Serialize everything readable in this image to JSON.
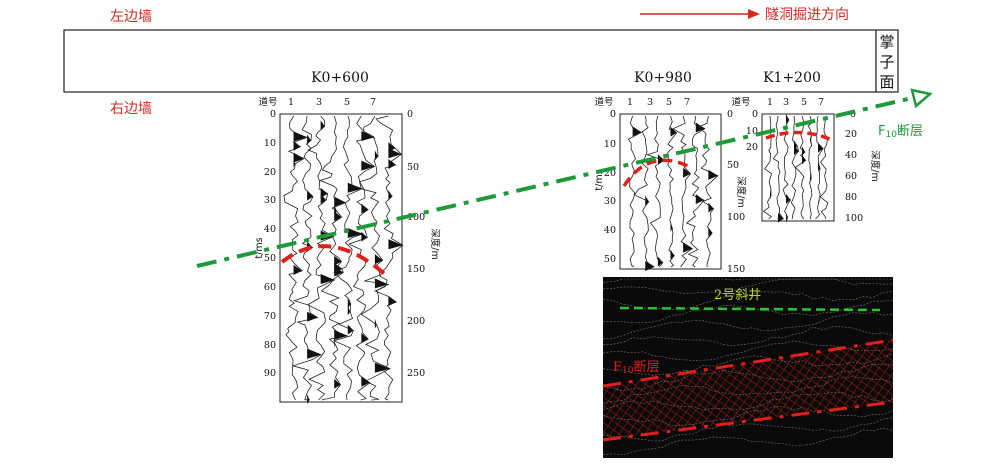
{
  "labels": {
    "left_wall": "左边墙",
    "right_wall": "右边墙",
    "direction": "隧洞掘进方向",
    "face_chars": [
      "掌",
      "子",
      "面"
    ],
    "fault_prefix": "F",
    "fault_sub": "10",
    "fault_suffix": "断层",
    "inclined_shaft": "2号斜井",
    "channel_header": "道号",
    "time_axis": "t/ms",
    "depth_axis": "深度/m"
  },
  "colors": {
    "red_text": "#d42a20",
    "fault_line": "#1f9a3a",
    "anomaly": "#e0201a",
    "shaft": "#2ec22e",
    "inset_bg": "#0a0a0a"
  },
  "panels": [
    {
      "station": "K0+600",
      "channels": [
        "1",
        "3",
        "5",
        "7"
      ],
      "time_ticks": [
        "0",
        "10",
        "20",
        "30",
        "40",
        "50",
        "60",
        "70",
        "80",
        "90"
      ],
      "depth_ticks": [
        "0",
        "50",
        "100",
        "150",
        "200",
        "250"
      ]
    },
    {
      "station": "K0+980",
      "channels": [
        "1",
        "3",
        "5",
        "7"
      ],
      "time_ticks": [
        "0",
        "10",
        "20",
        "30",
        "40",
        "50"
      ],
      "depth_ticks": [
        "0",
        "50",
        "100",
        "150"
      ]
    },
    {
      "station": "K1+200",
      "channels": [
        "1",
        "3",
        "5",
        "7"
      ],
      "time_ticks": [
        "0",
        "10",
        "20"
      ],
      "depth_ticks": [
        "0",
        "20",
        "40",
        "60",
        "80",
        "100"
      ]
    }
  ]
}
